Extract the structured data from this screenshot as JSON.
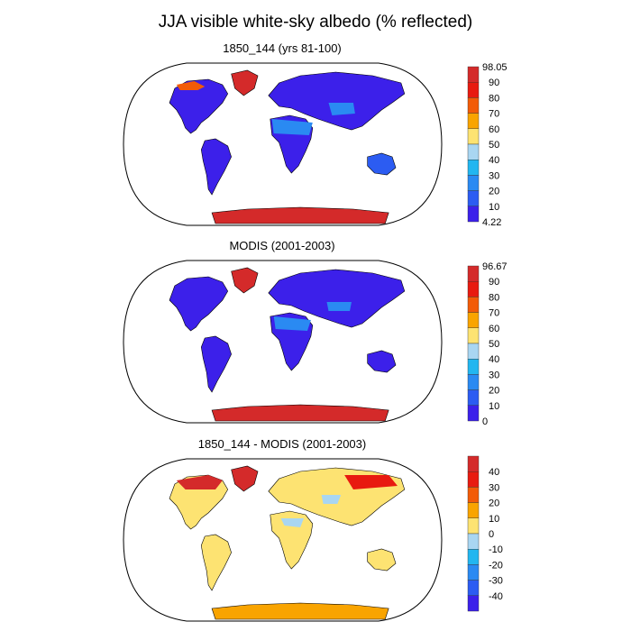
{
  "title": "JJA visible white-sky albedo (% reflected)",
  "chart_data": [
    {
      "type": "heatmap",
      "title": "1850_144 (yrs 81-100)",
      "colorbar": {
        "top_label": "98.05",
        "bottom_label": "4.22",
        "ticks": [
          "90",
          "80",
          "70",
          "60",
          "50",
          "40",
          "30",
          "20",
          "10"
        ],
        "colors": [
          "#d42a2a",
          "#e81a10",
          "#f25b08",
          "#f9a400",
          "#fde372",
          "#a9d6f2",
          "#22b6f0",
          "#2a8af2",
          "#2c5cf2",
          "#3c20ea"
        ]
      }
    },
    {
      "type": "heatmap",
      "title": "MODIS (2001-2003)",
      "colorbar": {
        "top_label": "96.67",
        "bottom_label": "0",
        "ticks": [
          "90",
          "80",
          "70",
          "60",
          "50",
          "40",
          "30",
          "20",
          "10"
        ],
        "colors": [
          "#d42a2a",
          "#e81a10",
          "#f25b08",
          "#f9a400",
          "#fde372",
          "#a9d6f2",
          "#22b6f0",
          "#2a8af2",
          "#2c5cf2",
          "#3c20ea"
        ]
      }
    },
    {
      "type": "heatmap",
      "title": "1850_144 - MODIS (2001-2003)",
      "colorbar": {
        "top_label": "",
        "bottom_label": "",
        "ticks": [
          "40",
          "30",
          "20",
          "10",
          "0",
          "-10",
          "-20",
          "-30",
          "-40"
        ],
        "colors": [
          "#d42a2a",
          "#e81a10",
          "#f25b08",
          "#f9a400",
          "#fde372",
          "#a9d6f2",
          "#22b6f0",
          "#2a8af2",
          "#2c5cf2",
          "#3c20ea"
        ]
      }
    }
  ]
}
